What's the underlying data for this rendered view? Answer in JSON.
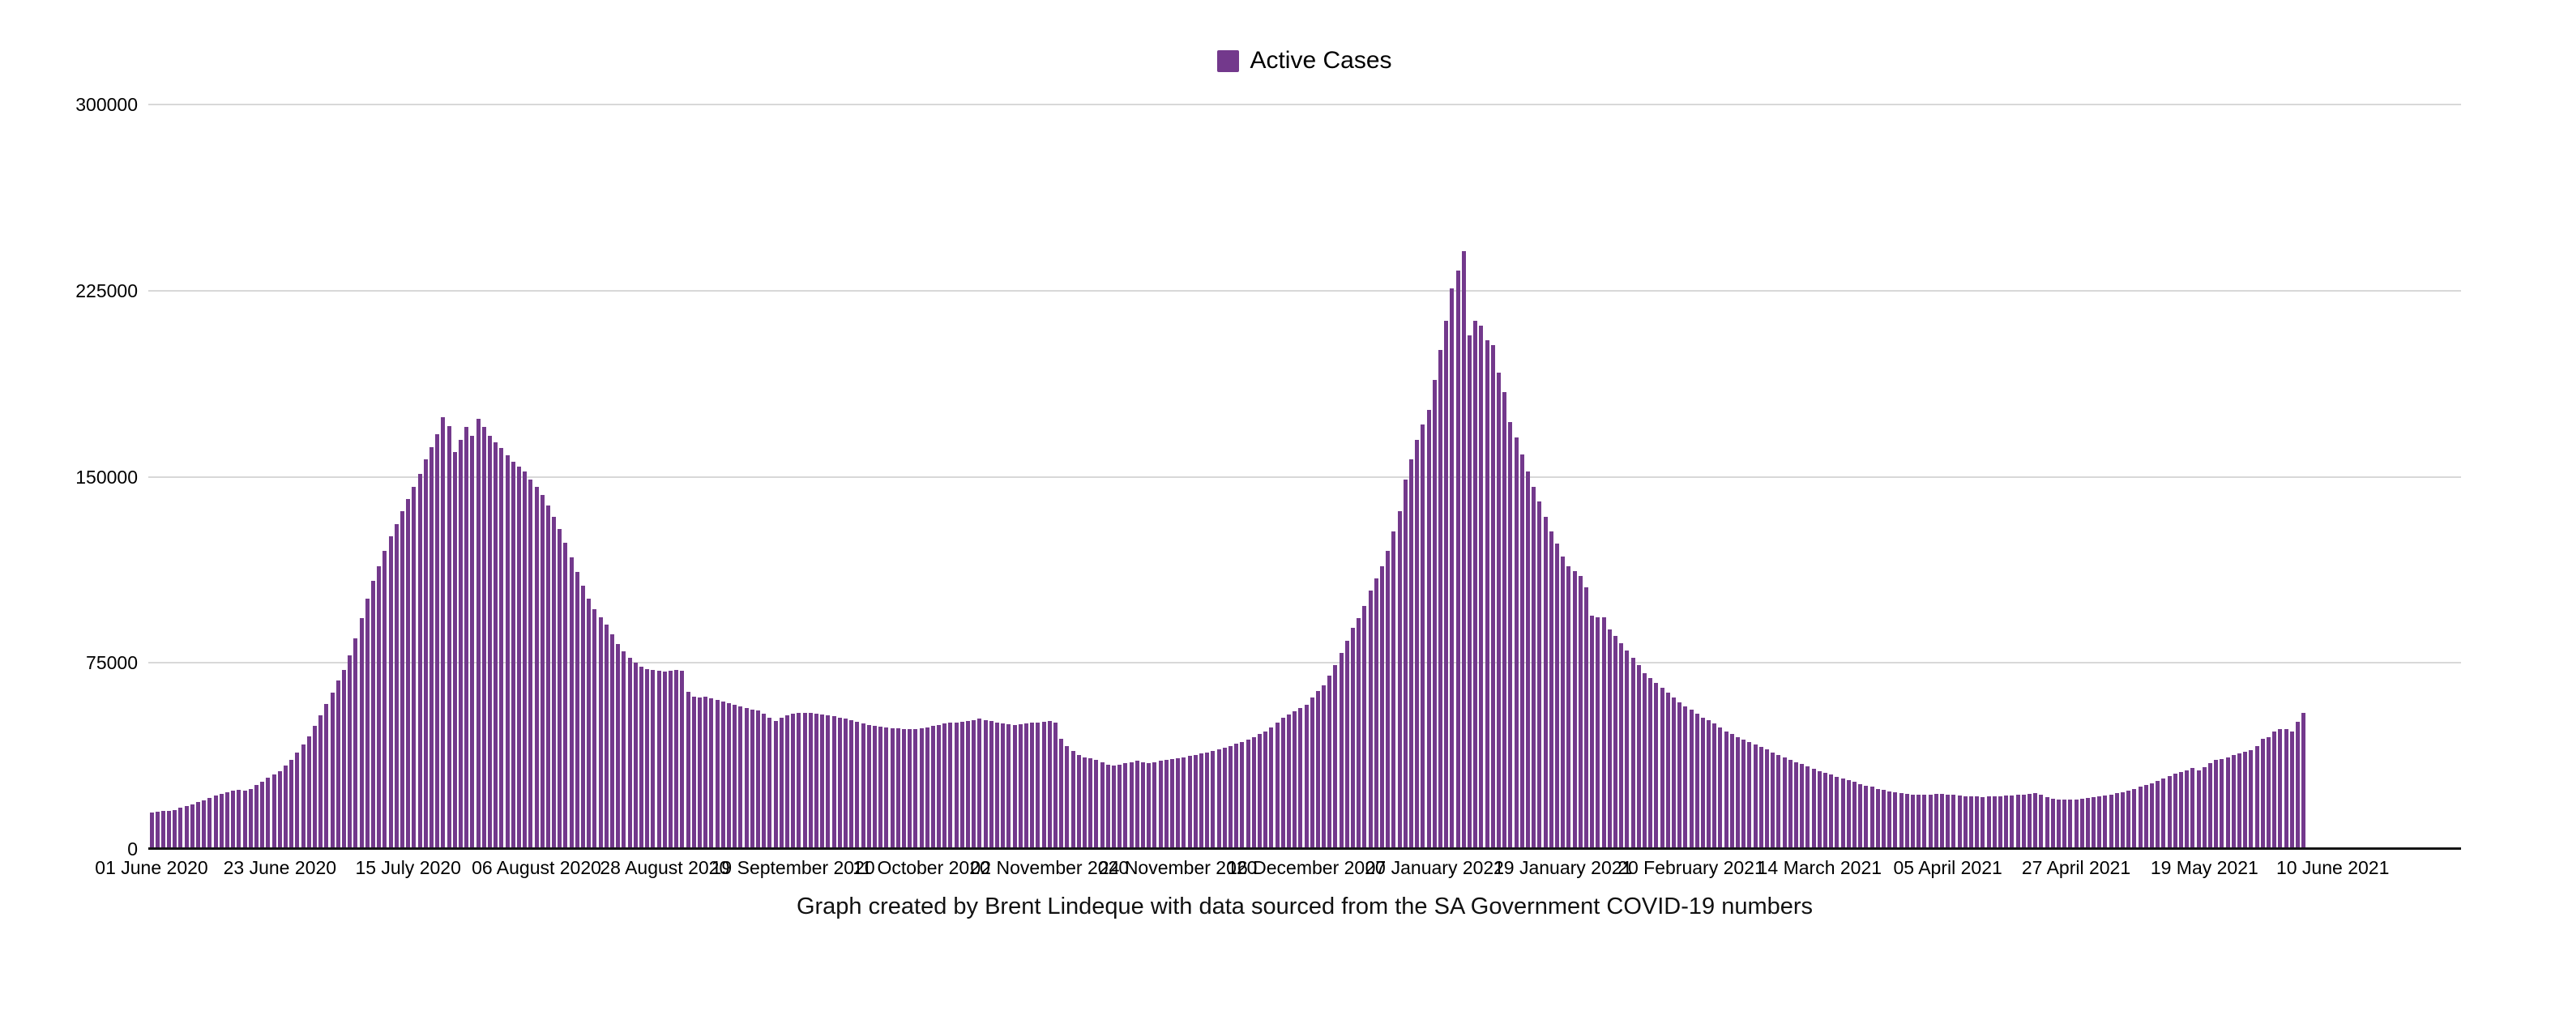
{
  "caption": "Graph created by Brent Lindeque with data sourced from the SA Government COVID-19 numbers",
  "legend": {
    "label": "Active Cases",
    "swatch_color": "#73398c"
  },
  "chart_data": {
    "type": "bar",
    "title": "",
    "legend_label": "Active Cases",
    "legend_position": "top-center",
    "bar_color": "#73398c",
    "grid": "horizontal",
    "grid_color": "#d8d8d8",
    "axis_color": "#141414",
    "ylim": [
      0,
      300000
    ],
    "y_ticks": [
      0,
      75000,
      150000,
      225000,
      300000
    ],
    "x_tick_interval_days": 22,
    "x_tick_labels": [
      "01 June 2020",
      "23 June 2020",
      "15 July 2020",
      "06 August 2020",
      "28 August 2020",
      "19 September 2020",
      "11 October 2020",
      "02 November 2020",
      "24 November 2020",
      "16 December 2020",
      "07 January 2021",
      "29 January 2021",
      "20 February 2021",
      "14 March 2021",
      "05 April 2021",
      "27 April 2021",
      "19 May 2021",
      "10 June 2021"
    ],
    "x_start_date": "01 June 2020",
    "x_end_date": "04 June 2021",
    "n_days": 370,
    "axis_total_days": 397,
    "values": [
      14800,
      15000,
      15200,
      15400,
      15800,
      16500,
      17300,
      18000,
      18800,
      19500,
      20500,
      21500,
      22300,
      23000,
      23600,
      23800,
      23400,
      24300,
      25800,
      27200,
      28800,
      30000,
      31500,
      33500,
      36000,
      38800,
      42000,
      45500,
      49500,
      54000,
      58500,
      63000,
      68000,
      72000,
      78000,
      85000,
      93000,
      101000,
      108000,
      114000,
      120000,
      126000,
      131000,
      136000,
      141000,
      146000,
      151000,
      157000,
      162000,
      167000,
      174000,
      170500,
      160000,
      165000,
      170000,
      166500,
      173500,
      170000,
      166500,
      164000,
      161500,
      158500,
      156000,
      154000,
      152000,
      149000,
      146000,
      142500,
      138500,
      134000,
      129000,
      123500,
      117500,
      111500,
      106000,
      101000,
      96500,
      93500,
      90500,
      86500,
      82500,
      79500,
      77000,
      75000,
      73500,
      72500,
      72000,
      71800,
      71500,
      71800,
      72000,
      71800,
      63200,
      61500,
      61000,
      61500,
      60800,
      60000,
      59400,
      58800,
      58200,
      57300,
      56800,
      56300,
      55800,
      54500,
      52800,
      51700,
      52800,
      54000,
      54500,
      54800,
      55000,
      54800,
      54500,
      54200,
      54000,
      53500,
      53000,
      52500,
      52000,
      51300,
      50500,
      50000,
      49600,
      49200,
      48900,
      48700,
      48500,
      48400,
      48400,
      48400,
      48500,
      49000,
      49500,
      50000,
      50500,
      50800,
      51000,
      51300,
      51600,
      52000,
      52400,
      52000,
      51500,
      51000,
      50500,
      50200,
      50000,
      50200,
      50500,
      50800,
      51000,
      51300,
      51500,
      51000,
      44500,
      41500,
      39500,
      38000,
      37000,
      36500,
      36000,
      35000,
      34000,
      33500,
      34000,
      34500,
      35000,
      35500,
      35000,
      34500,
      35000,
      35500,
      36000,
      36300,
      36500,
      37000,
      37500,
      38000,
      38500,
      39000,
      39500,
      40000,
      40800,
      41500,
      42300,
      43200,
      44200,
      45200,
      46200,
      47500,
      49000,
      51000,
      53000,
      54300,
      55500,
      56800,
      58000,
      61000,
      63500,
      66000,
      70000,
      74000,
      79000,
      84000,
      89000,
      93000,
      98000,
      104000,
      109000,
      114000,
      120000,
      128000,
      136000,
      149000,
      157000,
      165000,
      171000,
      177000,
      189000,
      201000,
      213000,
      226000,
      233000,
      241000,
      207000,
      213000,
      211000,
      205000,
      203000,
      192000,
      184000,
      172000,
      166000,
      159000,
      152000,
      146000,
      140000,
      134000,
      128000,
      123000,
      118000,
      114000,
      112000,
      110000,
      105500,
      94000,
      93500,
      93500,
      88500,
      86000,
      83000,
      80000,
      77000,
      74000,
      71000,
      69000,
      67000,
      65000,
      63000,
      61000,
      59000,
      57500,
      56000,
      54500,
      53000,
      51800,
      50500,
      49000,
      47500,
      46200,
      45000,
      44000,
      43000,
      42000,
      41000,
      40000,
      39000,
      38000,
      37000,
      36000,
      35000,
      34200,
      33300,
      32400,
      31500,
      30800,
      30000,
      29200,
      28500,
      27800,
      27000,
      26200,
      25500,
      25000,
      24300,
      23700,
      23200,
      22800,
      22500,
      22200,
      22000,
      21900,
      21800,
      21900,
      22100,
      22100,
      22000,
      21800,
      21500,
      21300,
      21200,
      21100,
      21000,
      21100,
      21200,
      21300,
      21500,
      21600,
      21800,
      22000,
      22300,
      22500,
      22000,
      20800,
      20300,
      20000,
      20000,
      20000,
      20000,
      20200,
      20500,
      20800,
      21200,
      21600,
      22000,
      22500,
      23000,
      23600,
      24200,
      25000,
      25800,
      26600,
      27500,
      28500,
      29500,
      30300,
      31000,
      31800,
      32500,
      31800,
      33000,
      34500,
      35800,
      36200,
      37000,
      38000,
      38500,
      39200,
      39800,
      41500,
      44500,
      45200,
      47200,
      48400,
      48200,
      47400,
      51200,
      55000
    ]
  }
}
